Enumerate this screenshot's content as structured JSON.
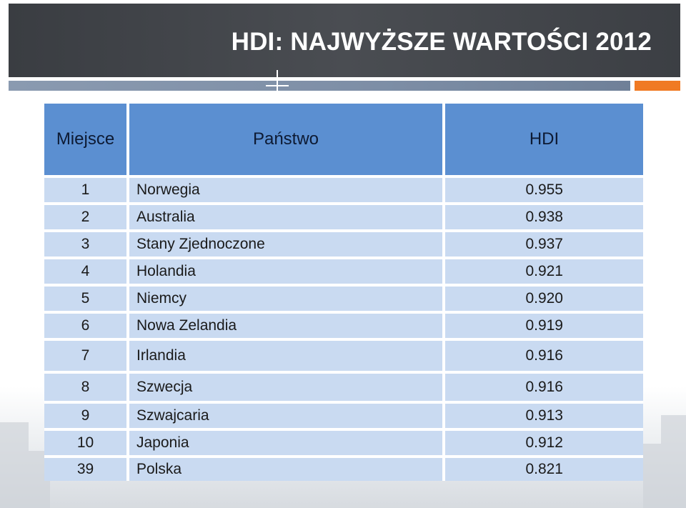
{
  "title": "HDI: NAJWYŻSZE WARTOŚCI 2012",
  "table": {
    "headers": [
      "Miejsce",
      "Państwo",
      "HDI"
    ],
    "rows": [
      {
        "rank": "1",
        "country": "Norwegia",
        "hdi": "0.955"
      },
      {
        "rank": "2",
        "country": "Australia",
        "hdi": "0.938"
      },
      {
        "rank": "3",
        "country": "Stany Zjednoczone",
        "hdi": "0.937"
      },
      {
        "rank": "4",
        "country": "Holandia",
        "hdi": "0.921"
      },
      {
        "rank": "5",
        "country": "Niemcy",
        "hdi": "0.920"
      },
      {
        "rank": "6",
        "country": "Nowa Zelandia",
        "hdi": "0.919"
      },
      {
        "rank": "7",
        "country": "Irlandia",
        "hdi": "0.916"
      },
      {
        "rank": "8",
        "country": "Szwecja",
        "hdi": "0.916"
      },
      {
        "rank": "9",
        "country": "Szwajcaria",
        "hdi": "0.913"
      },
      {
        "rank": "10",
        "country": "Japonia",
        "hdi": "0.912"
      },
      {
        "rank": "39",
        "country": "Polska",
        "hdi": "0.821"
      }
    ]
  },
  "colors": {
    "title_bar": "#404348",
    "header_fill": "#5b8fd1",
    "row_fill": "#c9daf1",
    "accent_orange": "#f07a24"
  }
}
